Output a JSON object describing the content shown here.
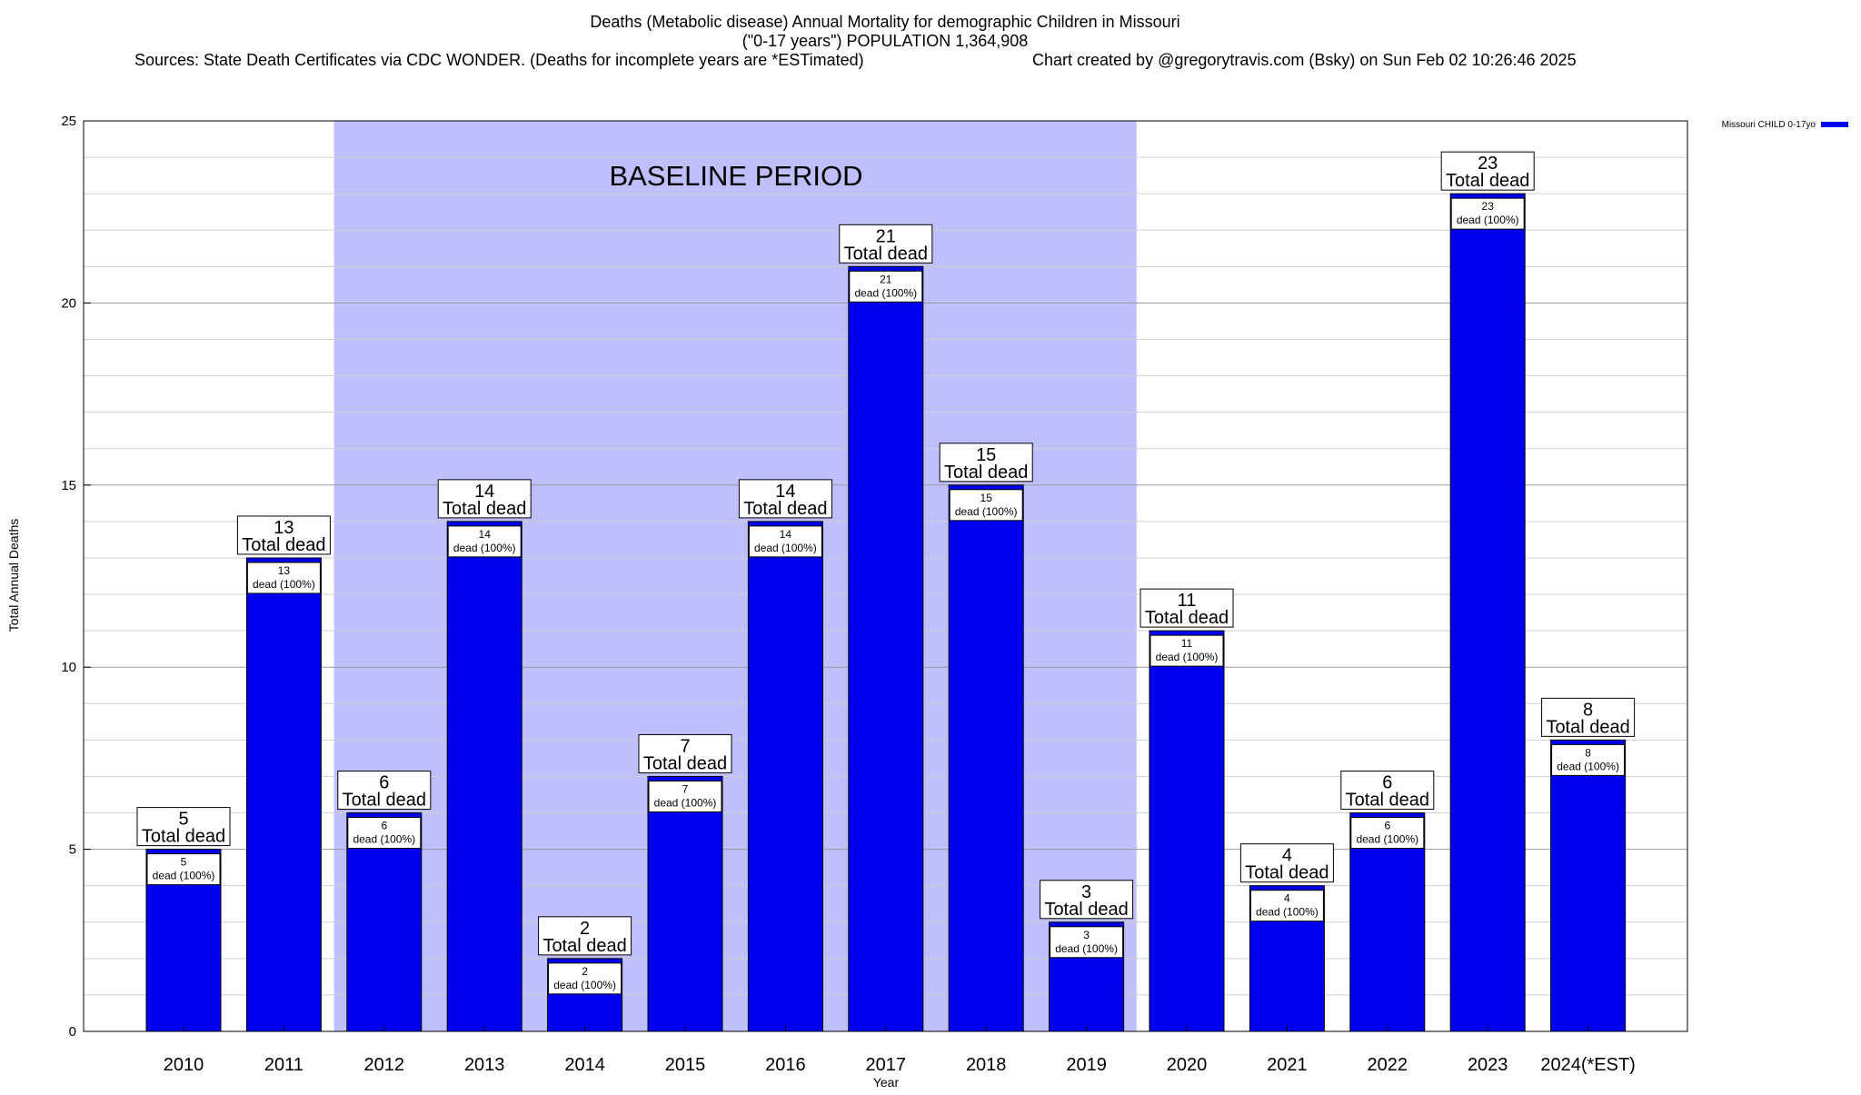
{
  "chart_data": {
    "type": "bar",
    "title_lines": [
      "Deaths (Metabolic disease) Annual Mortality for demographic Children in Missouri",
      "(\"0-17 years\") POPULATION 1,364,908"
    ],
    "sources": "Sources: State Death Certificates via CDC WONDER. (Deaths for incomplete years are *ESTimated)",
    "credit": "Chart created by @gregorytravis.com (Bsky) on Sun Feb 02 10:26:46 2025",
    "xlabel": "Year",
    "ylabel": "Total Annual Deaths",
    "ylim": [
      0,
      25
    ],
    "yticks": [
      0,
      5,
      10,
      15,
      20,
      25
    ],
    "minor_y_step": 1,
    "grid": true,
    "legend": {
      "position": "top-right",
      "entries": [
        {
          "name": "Missouri CHILD 0-17yo",
          "color": "#0000ee"
        }
      ]
    },
    "baseline": {
      "label": "BASELINE PERIOD",
      "from": "2012",
      "to": "2019",
      "color": "#bfbffb"
    },
    "bar_color": "#0000ee",
    "total_label": "Total dead",
    "share_label": "dead (100%)",
    "categories": [
      "2010",
      "2011",
      "2012",
      "2013",
      "2014",
      "2015",
      "2016",
      "2017",
      "2018",
      "2019",
      "2020",
      "2021",
      "2022",
      "2023",
      "2024(*EST)"
    ],
    "series": [
      {
        "name": "Missouri CHILD 0-17yo",
        "values": [
          5,
          13,
          6,
          14,
          2,
          7,
          14,
          21,
          15,
          3,
          11,
          4,
          6,
          23,
          8
        ]
      }
    ]
  }
}
